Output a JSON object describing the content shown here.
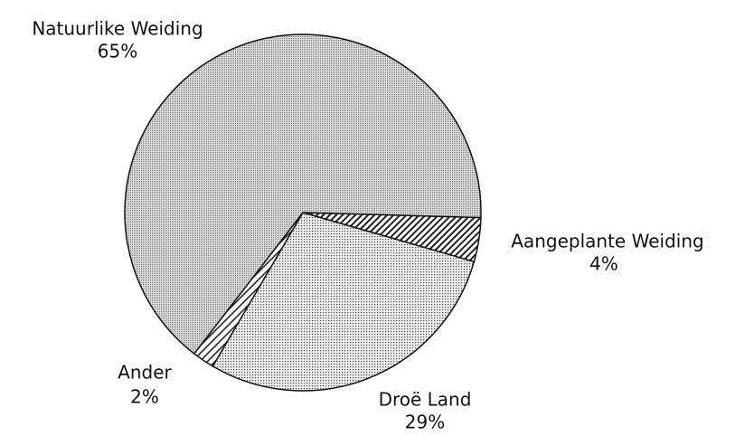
{
  "chart_data": {
    "type": "pie",
    "categories": [
      "Aangeplante Weiding",
      "Droë Land",
      "Ander",
      "Natuurlike Weiding"
    ],
    "values": [
      4,
      29,
      2,
      65
    ],
    "value_labels": [
      "4%",
      "29%",
      "2%",
      "65%"
    ]
  }
}
